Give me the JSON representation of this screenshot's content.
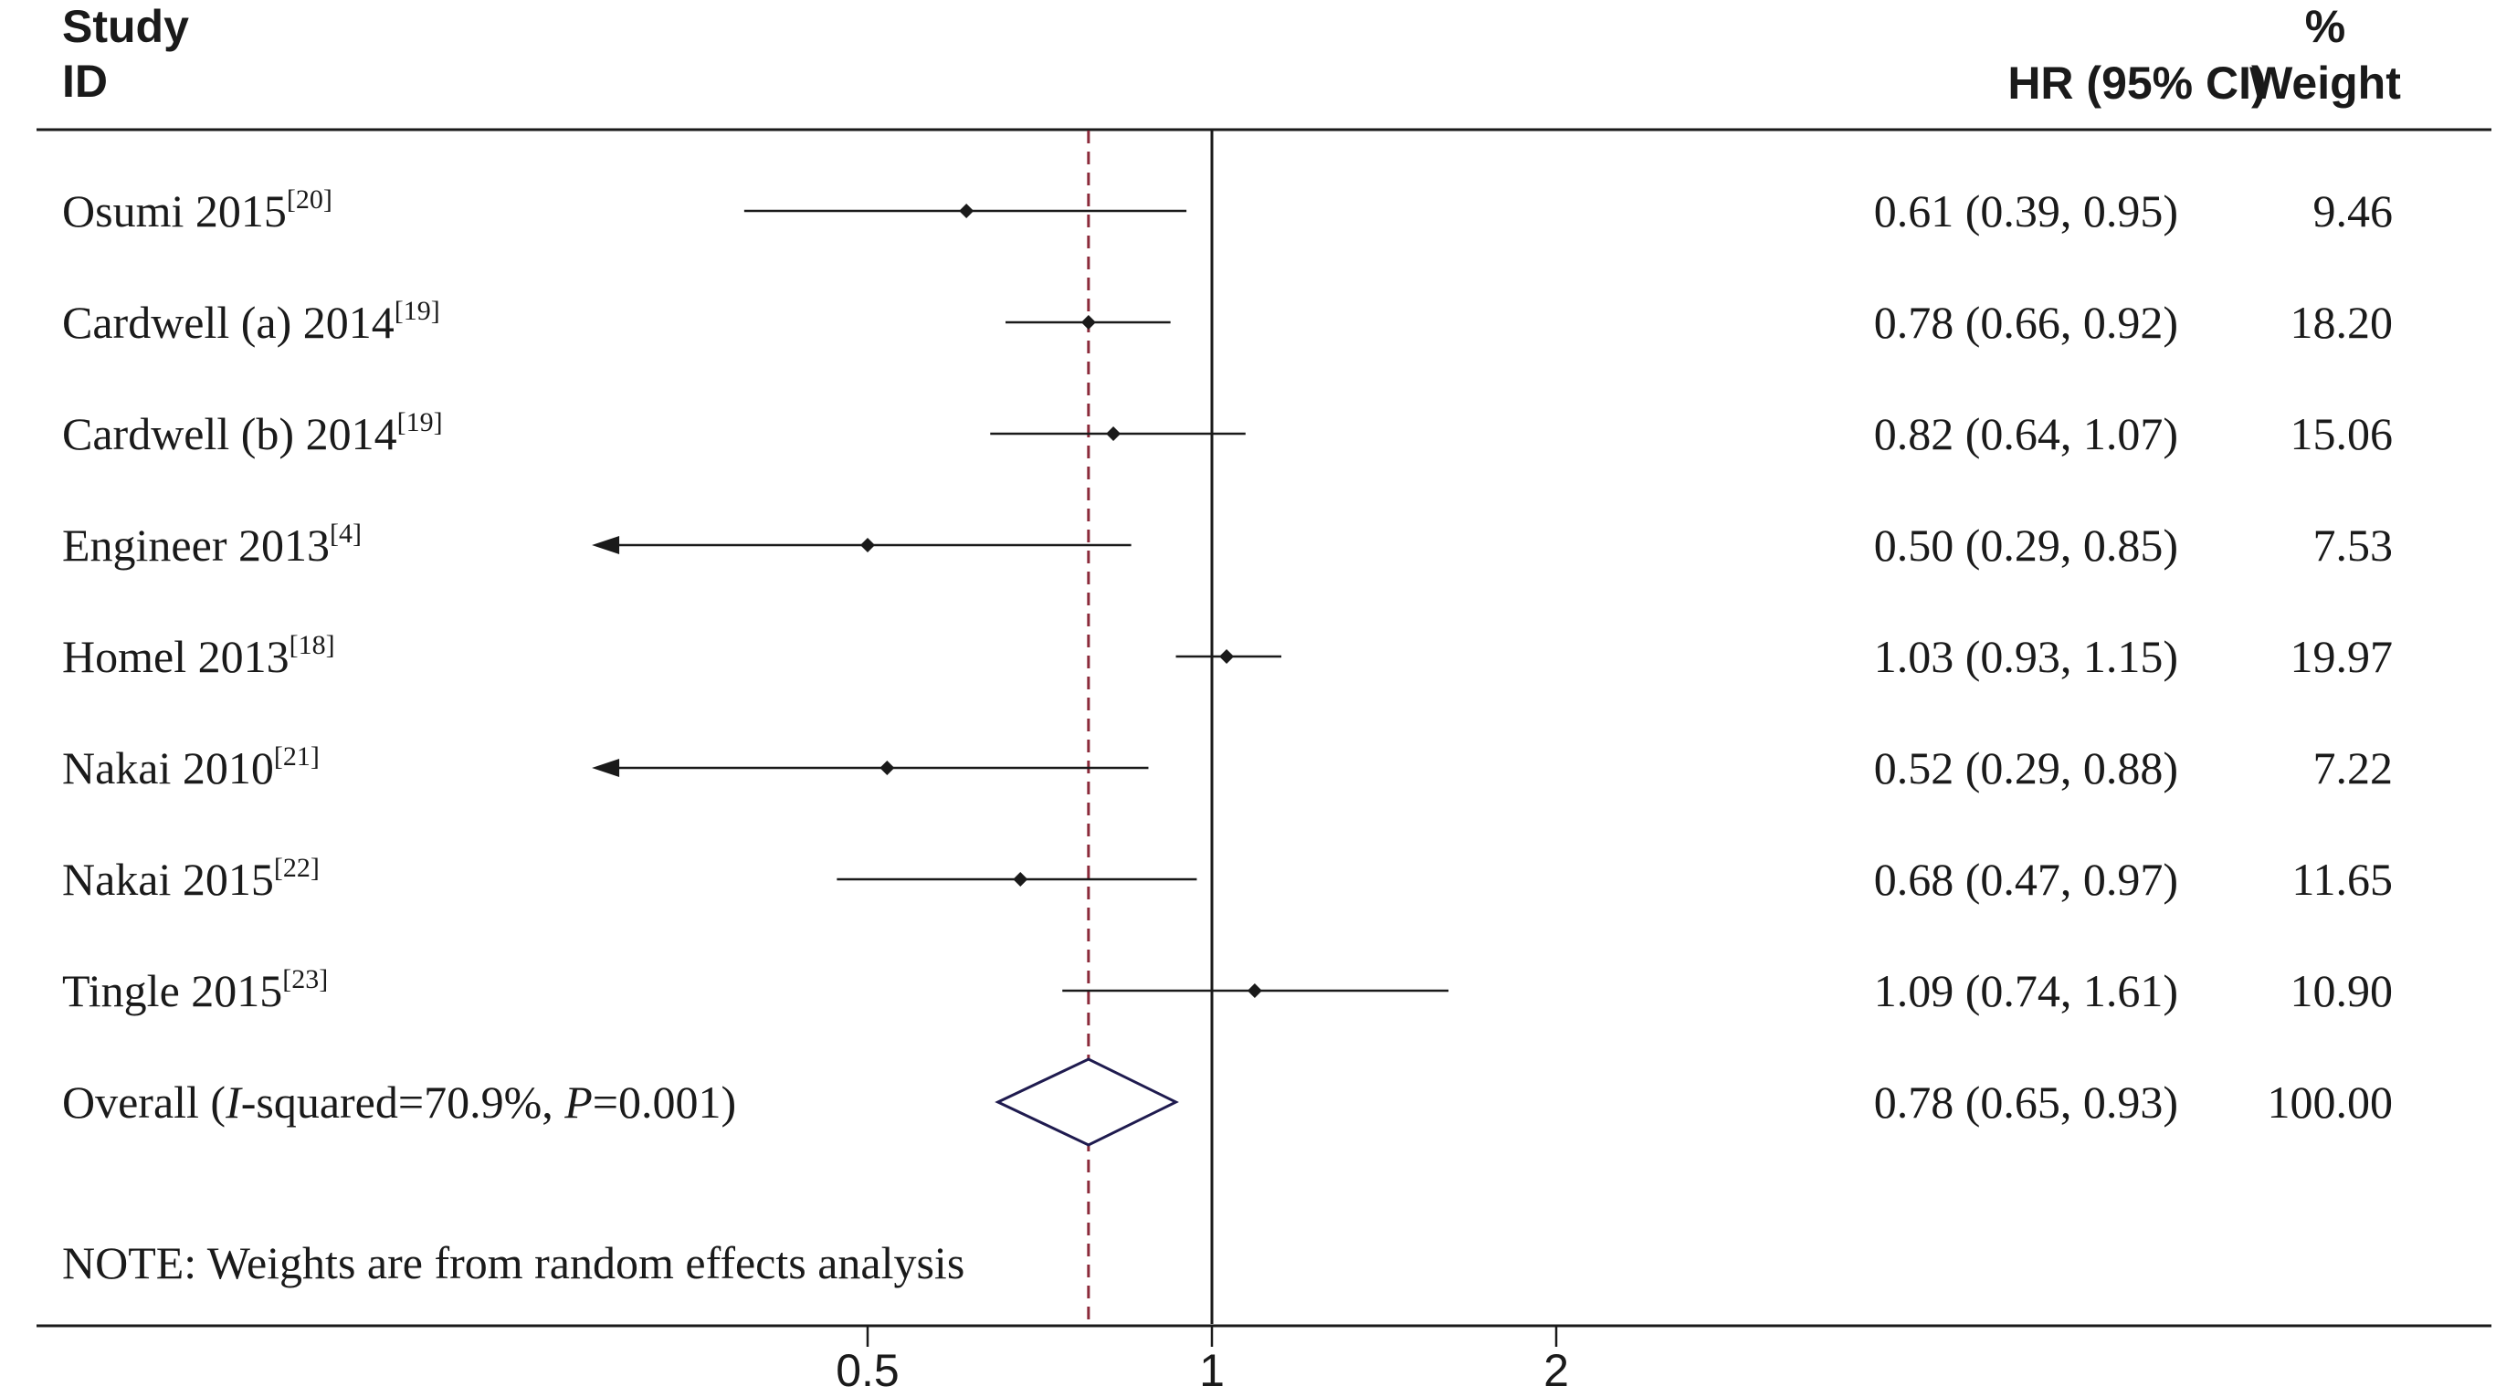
{
  "chart_data": {
    "type": "forest",
    "header": {
      "study_line1": "Study",
      "study_line2": "ID",
      "hr_label": "HR (95% CI)",
      "weight_line1": "%",
      "weight_line2": "Weight"
    },
    "studies": [
      {
        "name": "Osumi 2015",
        "ref": "[20]",
        "hr": 0.61,
        "lo": 0.39,
        "hi": 0.95,
        "hr_text": "0.61 (0.39, 0.95)",
        "weight": "9.46"
      },
      {
        "name": "Cardwell (a) 2014",
        "ref": "[19]",
        "hr": 0.78,
        "lo": 0.66,
        "hi": 0.92,
        "hr_text": "0.78 (0.66, 0.92)",
        "weight": "18.20"
      },
      {
        "name": "Cardwell (b) 2014",
        "ref": "[19]",
        "hr": 0.82,
        "lo": 0.64,
        "hi": 1.07,
        "hr_text": "0.82 (0.64, 1.07)",
        "weight": "15.06"
      },
      {
        "name": "Engineer 2013",
        "ref": "[4]",
        "hr": 0.5,
        "lo": 0.29,
        "hi": 0.85,
        "hr_text": "0.50 (0.29, 0.85)",
        "weight": "7.53"
      },
      {
        "name": "Homel 2013",
        "ref": "[18]",
        "hr": 1.03,
        "lo": 0.93,
        "hi": 1.15,
        "hr_text": "1.03 (0.93, 1.15)",
        "weight": "19.97"
      },
      {
        "name": "Nakai 2010",
        "ref": "[21]",
        "hr": 0.52,
        "lo": 0.29,
        "hi": 0.88,
        "hr_text": "0.52 (0.29, 0.88)",
        "weight": "7.22"
      },
      {
        "name": "Nakai 2015",
        "ref": "[22]",
        "hr": 0.68,
        "lo": 0.47,
        "hi": 0.97,
        "hr_text": "0.68 (0.47, 0.97)",
        "weight": "11.65"
      },
      {
        "name": "Tingle 2015",
        "ref": "[23]",
        "hr": 1.09,
        "lo": 0.74,
        "hi": 1.61,
        "hr_text": "1.09 (0.74, 1.61)",
        "weight": "10.90"
      }
    ],
    "overall": {
      "label_prefix": "Overall  (",
      "i_italic": "I",
      "i_text": "-squared=70.9%, ",
      "p_italic": "P",
      "p_text": "=0.001)",
      "hr": 0.78,
      "lo": 0.65,
      "hi": 0.93,
      "hr_text": "0.78 (0.65, 0.93)",
      "weight": "100.00"
    },
    "note": "NOTE: Weights are from random effects analysis",
    "x_axis": {
      "scale": "log",
      "ticks": [
        {
          "value": 0.5,
          "label": "0.5"
        },
        {
          "value": 1,
          "label": "1"
        },
        {
          "value": 2,
          "label": "2"
        }
      ],
      "xlim": [
        0.287,
        2.0
      ],
      "clip_min": 0.29
    },
    "reference_line": 1,
    "pooled_line": 0.78,
    "colors": {
      "text": "#1a1a1a",
      "pooled_line": "#8b2a3a",
      "diamond": "#1f1b4f"
    }
  }
}
